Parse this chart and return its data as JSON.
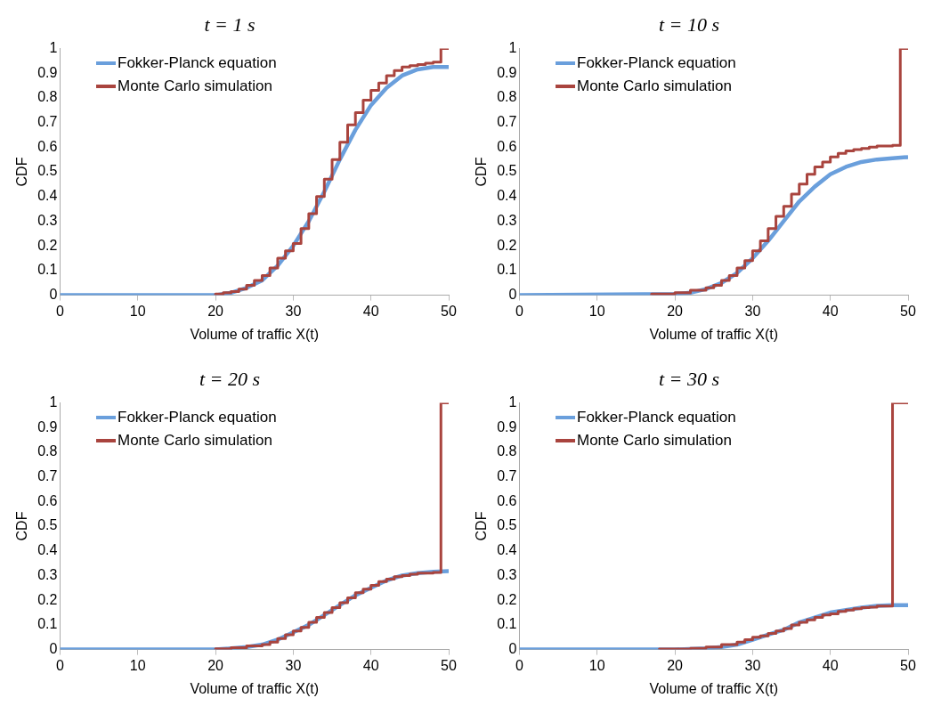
{
  "chart_data": [
    {
      "type": "line",
      "title": "t = 1 s",
      "xlabel": "Volume of traffic X(t)",
      "ylabel": "CDF",
      "xlim": [
        0,
        50
      ],
      "xticks": [
        0,
        10,
        20,
        30,
        40,
        50
      ],
      "ylim": [
        0,
        1
      ],
      "yticks": [
        0,
        0.1,
        0.2,
        0.3,
        0.4,
        0.5,
        0.6,
        0.7,
        0.8,
        0.9,
        1
      ],
      "grid": false,
      "legend": "top left",
      "marker": "none",
      "series": [
        {
          "name": "Fokker-Planck equation",
          "type": "line",
          "color": "#6a9fdc",
          "x": [
            0,
            20,
            22,
            24,
            26,
            28,
            30,
            32,
            34,
            36,
            38,
            40,
            42,
            44,
            46,
            48,
            50
          ],
          "values": [
            0,
            0,
            0.01,
            0.03,
            0.06,
            0.12,
            0.2,
            0.3,
            0.42,
            0.55,
            0.67,
            0.77,
            0.84,
            0.89,
            0.915,
            0.925,
            0.925
          ]
        },
        {
          "name": "Monte Carlo simulation",
          "type": "step",
          "color": "#a9443e",
          "x": [
            20,
            21,
            22,
            23,
            24,
            25,
            26,
            27,
            28,
            29,
            30,
            31,
            32,
            33,
            34,
            35,
            36,
            37,
            38,
            39,
            40,
            41,
            42,
            43,
            44,
            45,
            46,
            47,
            48,
            49,
            50
          ],
          "values": [
            0,
            0.005,
            0.01,
            0.015,
            0.025,
            0.04,
            0.06,
            0.08,
            0.11,
            0.15,
            0.18,
            0.21,
            0.27,
            0.33,
            0.4,
            0.47,
            0.55,
            0.62,
            0.69,
            0.74,
            0.79,
            0.83,
            0.86,
            0.89,
            0.91,
            0.925,
            0.93,
            0.935,
            0.94,
            0.945,
            1
          ]
        }
      ]
    },
    {
      "type": "line",
      "title": "t = 10 s",
      "xlabel": "Volume of traffic X(t)",
      "ylabel": "CDF",
      "xlim": [
        0,
        50
      ],
      "xticks": [
        0,
        10,
        20,
        30,
        40,
        50
      ],
      "ylim": [
        0,
        1
      ],
      "yticks": [
        0,
        0.1,
        0.2,
        0.3,
        0.4,
        0.5,
        0.6,
        0.7,
        0.8,
        0.9,
        1
      ],
      "grid": false,
      "legend": "top left",
      "marker": "none",
      "series": [
        {
          "name": "Fokker-Planck equation",
          "type": "line",
          "color": "#6a9fdc",
          "x": [
            0,
            20,
            22,
            24,
            26,
            28,
            30,
            32,
            34,
            36,
            38,
            40,
            42,
            44,
            46,
            48,
            50
          ],
          "values": [
            0,
            0.005,
            0.01,
            0.025,
            0.05,
            0.09,
            0.15,
            0.22,
            0.3,
            0.38,
            0.44,
            0.49,
            0.52,
            0.54,
            0.55,
            0.555,
            0.56
          ]
        },
        {
          "name": "Monte Carlo simulation",
          "type": "step",
          "color": "#a9443e",
          "x": [
            17,
            20,
            22,
            24,
            25,
            26,
            27,
            28,
            29,
            30,
            31,
            32,
            33,
            34,
            35,
            36,
            37,
            38,
            39,
            40,
            41,
            42,
            43,
            44,
            45,
            46,
            48,
            49,
            50
          ],
          "values": [
            0,
            0.005,
            0.01,
            0.02,
            0.03,
            0.04,
            0.06,
            0.08,
            0.11,
            0.14,
            0.18,
            0.22,
            0.27,
            0.32,
            0.36,
            0.41,
            0.45,
            0.49,
            0.52,
            0.54,
            0.56,
            0.575,
            0.585,
            0.59,
            0.595,
            0.6,
            0.605,
            0.607,
            1
          ]
        }
      ]
    },
    {
      "type": "line",
      "title": "t = 20 s",
      "xlabel": "Volume of traffic X(t)",
      "ylabel": "CDF",
      "xlim": [
        0,
        50
      ],
      "xticks": [
        0,
        10,
        20,
        30,
        40,
        50
      ],
      "ylim": [
        0,
        1
      ],
      "yticks": [
        0,
        0.1,
        0.2,
        0.3,
        0.4,
        0.5,
        0.6,
        0.7,
        0.8,
        0.9,
        1
      ],
      "grid": false,
      "legend": "top left",
      "marker": "none",
      "series": [
        {
          "name": "Fokker-Planck equation",
          "type": "line",
          "color": "#6a9fdc",
          "x": [
            0,
            20,
            24,
            26,
            28,
            30,
            32,
            34,
            36,
            38,
            40,
            42,
            44,
            46,
            48,
            50
          ],
          "values": [
            0,
            0,
            0.01,
            0.02,
            0.04,
            0.07,
            0.1,
            0.14,
            0.18,
            0.22,
            0.25,
            0.28,
            0.3,
            0.31,
            0.315,
            0.318
          ]
        },
        {
          "name": "Monte Carlo simulation",
          "type": "step",
          "color": "#a9443e",
          "x": [
            20,
            22,
            24,
            26,
            27,
            28,
            29,
            30,
            31,
            32,
            33,
            34,
            35,
            36,
            37,
            38,
            39,
            40,
            41,
            42,
            43,
            44,
            45,
            46,
            48,
            49,
            50
          ],
          "values": [
            0,
            0.003,
            0.008,
            0.015,
            0.02,
            0.03,
            0.045,
            0.06,
            0.075,
            0.09,
            0.11,
            0.13,
            0.15,
            0.17,
            0.19,
            0.21,
            0.23,
            0.245,
            0.26,
            0.275,
            0.285,
            0.295,
            0.3,
            0.305,
            0.31,
            0.312,
            1
          ]
        }
      ]
    },
    {
      "type": "line",
      "title": "t = 30 s",
      "xlabel": "Volume of traffic X(t)",
      "ylabel": "CDF",
      "xlim": [
        0,
        50
      ],
      "xticks": [
        0,
        10,
        20,
        30,
        40,
        50
      ],
      "ylim": [
        0,
        1
      ],
      "yticks": [
        0,
        0.1,
        0.2,
        0.3,
        0.4,
        0.5,
        0.6,
        0.7,
        0.8,
        0.9,
        1
      ],
      "grid": false,
      "legend": "top left",
      "marker": "none",
      "series": [
        {
          "name": "Fokker-Planck equation",
          "type": "line",
          "color": "#6a9fdc",
          "x": [
            0,
            20,
            24,
            26,
            28,
            30,
            32,
            34,
            36,
            38,
            40,
            42,
            44,
            46,
            48,
            50
          ],
          "values": [
            0,
            0,
            0.005,
            0.01,
            0.02,
            0.04,
            0.06,
            0.08,
            0.11,
            0.13,
            0.15,
            0.16,
            0.17,
            0.177,
            0.18,
            0.18
          ]
        },
        {
          "name": "Monte Carlo simulation",
          "type": "step",
          "color": "#a9443e",
          "x": [
            18,
            22,
            24,
            26,
            28,
            29,
            30,
            31,
            32,
            33,
            34,
            35,
            36,
            37,
            38,
            39,
            40,
            41,
            42,
            43,
            44,
            45,
            46,
            48,
            50
          ],
          "values": [
            0,
            0.002,
            0.005,
            0.01,
            0.02,
            0.03,
            0.04,
            0.05,
            0.055,
            0.065,
            0.075,
            0.085,
            0.1,
            0.11,
            0.12,
            0.13,
            0.14,
            0.145,
            0.155,
            0.16,
            0.165,
            0.17,
            0.172,
            0.176,
            1
          ]
        }
      ]
    }
  ]
}
